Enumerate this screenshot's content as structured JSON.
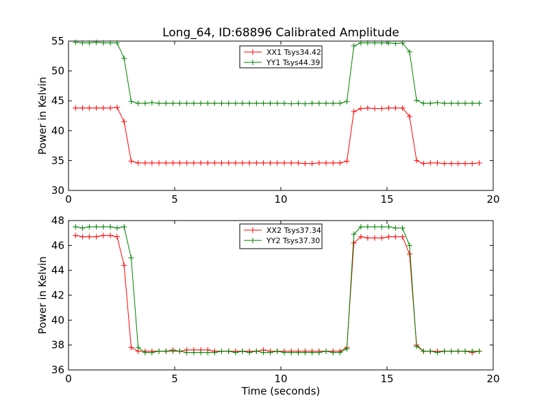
{
  "figure": {
    "title": "Long_64, ID:68896 Calibrated Amplitude"
  },
  "chart_data": [
    {
      "type": "line",
      "title": "Long_64, ID:68896 Calibrated Amplitude",
      "xlabel": "",
      "ylabel": "Power in Kelvin",
      "xlim": [
        0,
        20
      ],
      "ylim": [
        30,
        55
      ],
      "xticks": [
        "0",
        "5",
        "10",
        "15",
        "20"
      ],
      "yticks": [
        "30",
        "35",
        "40",
        "45",
        "50",
        "55"
      ],
      "grid": false,
      "legend_position": "top-center",
      "x": [
        0.33,
        0.66,
        0.98,
        1.31,
        1.64,
        1.97,
        2.29,
        2.62,
        2.95,
        3.28,
        3.61,
        3.93,
        4.26,
        4.59,
        4.92,
        5.24,
        5.57,
        5.9,
        6.23,
        6.56,
        6.88,
        7.21,
        7.54,
        7.87,
        8.19,
        8.52,
        8.85,
        9.18,
        9.5,
        9.83,
        10.16,
        10.49,
        10.82,
        11.14,
        11.47,
        11.8,
        12.13,
        12.46,
        12.78,
        13.11,
        13.44,
        13.77,
        14.09,
        14.42,
        14.75,
        15.08,
        15.4,
        15.73,
        16.06,
        16.39,
        16.72,
        17.04,
        17.37,
        17.7,
        18.03,
        18.35,
        18.68,
        19.01,
        19.34
      ],
      "series": [
        {
          "name": "XX1 Tsys34.42",
          "color": "#ff0000",
          "values": [
            43.8,
            43.8,
            43.8,
            43.8,
            43.8,
            43.8,
            43.9,
            41.5,
            34.9,
            34.6,
            34.6,
            34.6,
            34.6,
            34.6,
            34.6,
            34.6,
            34.6,
            34.6,
            34.6,
            34.6,
            34.6,
            34.6,
            34.6,
            34.6,
            34.6,
            34.6,
            34.6,
            34.6,
            34.6,
            34.6,
            34.6,
            34.6,
            34.6,
            34.5,
            34.5,
            34.6,
            34.6,
            34.6,
            34.6,
            34.9,
            43.2,
            43.7,
            43.8,
            43.7,
            43.7,
            43.8,
            43.8,
            43.8,
            42.4,
            35.0,
            34.5,
            34.6,
            34.6,
            34.5,
            34.5,
            34.5,
            34.5,
            34.5,
            34.6
          ]
        },
        {
          "name": "YY1 Tsys44.39",
          "color": "#008000",
          "values": [
            54.8,
            54.7,
            54.7,
            54.8,
            54.7,
            54.7,
            54.7,
            52.1,
            44.9,
            44.6,
            44.6,
            44.7,
            44.6,
            44.6,
            44.6,
            44.6,
            44.6,
            44.6,
            44.6,
            44.6,
            44.6,
            44.6,
            44.6,
            44.6,
            44.6,
            44.6,
            44.6,
            44.6,
            44.6,
            44.6,
            44.6,
            44.5,
            44.6,
            44.5,
            44.6,
            44.6,
            44.6,
            44.6,
            44.6,
            44.9,
            54.2,
            54.7,
            54.7,
            54.7,
            54.7,
            54.7,
            54.6,
            54.7,
            53.2,
            45.1,
            44.6,
            44.6,
            44.7,
            44.6,
            44.6,
            44.6,
            44.6,
            44.6,
            44.6
          ]
        }
      ]
    },
    {
      "type": "line",
      "title": "",
      "xlabel": "Time (seconds)",
      "ylabel": "Power in Kelvin",
      "xlim": [
        0,
        20
      ],
      "ylim": [
        36,
        48
      ],
      "xticks": [
        "0",
        "5",
        "10",
        "15",
        "20"
      ],
      "yticks": [
        "36",
        "38",
        "40",
        "42",
        "44",
        "46",
        "48"
      ],
      "grid": false,
      "legend_position": "top-center",
      "x": [
        0.33,
        0.66,
        0.98,
        1.31,
        1.64,
        1.97,
        2.29,
        2.62,
        2.95,
        3.28,
        3.61,
        3.93,
        4.26,
        4.59,
        4.92,
        5.24,
        5.57,
        5.9,
        6.23,
        6.56,
        6.88,
        7.21,
        7.54,
        7.87,
        8.19,
        8.52,
        8.85,
        9.18,
        9.5,
        9.83,
        10.16,
        10.49,
        10.82,
        11.14,
        11.47,
        11.8,
        12.13,
        12.46,
        12.78,
        13.11,
        13.44,
        13.77,
        14.09,
        14.42,
        14.75,
        15.08,
        15.4,
        15.73,
        16.06,
        16.39,
        16.72,
        17.04,
        17.37,
        17.7,
        18.03,
        18.35,
        18.68,
        19.01,
        19.34
      ],
      "series": [
        {
          "name": "XX2 Tsys37.34",
          "color": "#ff0000",
          "values": [
            46.8,
            46.7,
            46.7,
            46.7,
            46.8,
            46.8,
            46.7,
            44.4,
            37.8,
            37.5,
            37.5,
            37.5,
            37.5,
            37.5,
            37.6,
            37.5,
            37.6,
            37.6,
            37.6,
            37.6,
            37.5,
            37.5,
            37.5,
            37.5,
            37.5,
            37.5,
            37.5,
            37.6,
            37.5,
            37.5,
            37.5,
            37.5,
            37.5,
            37.5,
            37.5,
            37.5,
            37.5,
            37.5,
            37.5,
            37.8,
            46.2,
            46.7,
            46.6,
            46.6,
            46.6,
            46.7,
            46.7,
            46.7,
            45.3,
            38.0,
            37.5,
            37.5,
            37.5,
            37.5,
            37.5,
            37.5,
            37.5,
            37.4,
            37.5
          ]
        },
        {
          "name": "YY2 Tsys37.30",
          "color": "#008000",
          "values": [
            47.5,
            47.4,
            47.5,
            47.5,
            47.5,
            47.5,
            47.4,
            47.5,
            45.0,
            37.8,
            37.4,
            37.4,
            37.5,
            37.5,
            37.5,
            37.5,
            37.4,
            37.4,
            37.4,
            37.4,
            37.4,
            37.5,
            37.5,
            37.4,
            37.5,
            37.4,
            37.5,
            37.4,
            37.4,
            37.5,
            37.4,
            37.4,
            37.4,
            37.4,
            37.4,
            37.4,
            37.5,
            37.4,
            37.4,
            37.7,
            46.9,
            47.5,
            47.5,
            47.5,
            47.5,
            47.5,
            47.4,
            47.4,
            46.0,
            37.9,
            37.5,
            37.5,
            37.4,
            37.5,
            37.5,
            37.5,
            37.5,
            37.5,
            37.5
          ]
        }
      ]
    }
  ]
}
